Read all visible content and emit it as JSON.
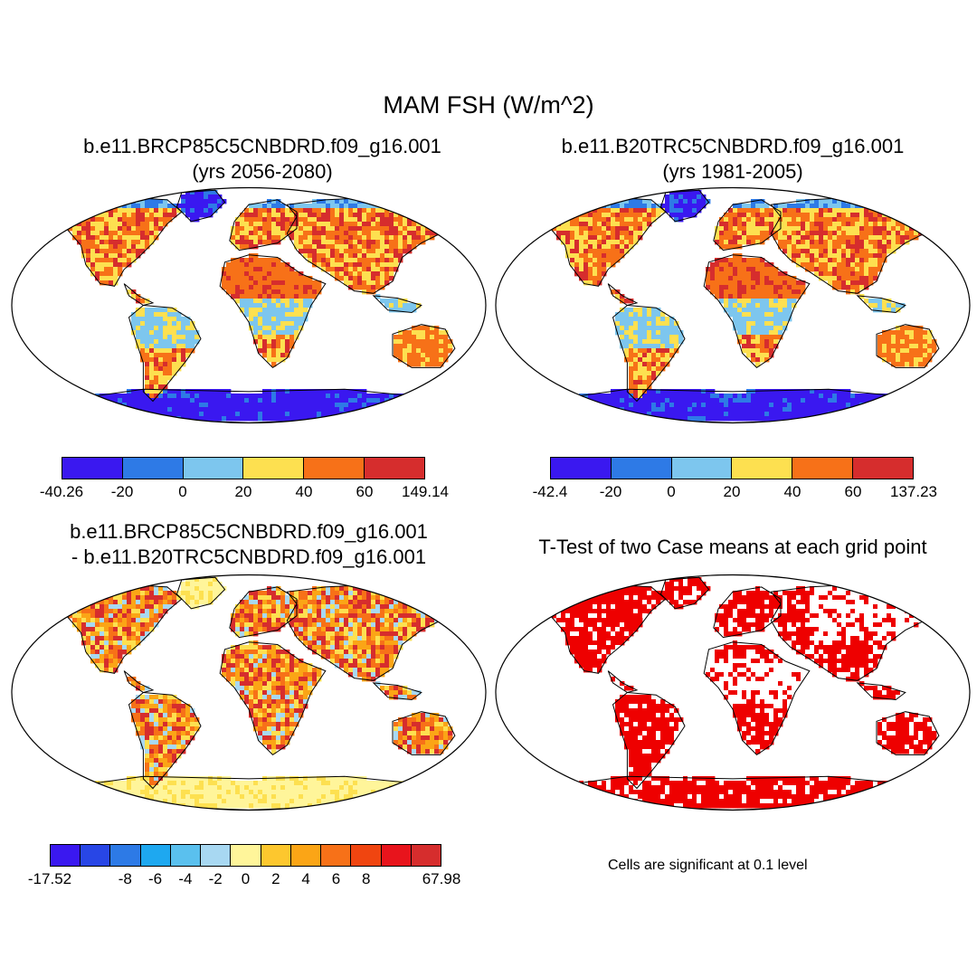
{
  "main_title": "MAM FSH (W/m^2)",
  "panels": {
    "top_left": {
      "title_line1": "b.e11.BRCP85C5CNBDRD.f09_g16.001",
      "title_line2": "(yrs 2056-2080)",
      "colorbar": {
        "colors": [
          "#3a18f0",
          "#2e7ae6",
          "#7dc6ee",
          "#fde050",
          "#f77118",
          "#d62d2d"
        ],
        "labels": [
          "-40.26",
          "-20",
          "0",
          "20",
          "40",
          "60",
          "149.14"
        ]
      }
    },
    "top_right": {
      "title_line1": "b.e11.B20TRC5CNBDRD.f09_g16.001",
      "title_line2": "(yrs 1981-2005)",
      "colorbar": {
        "colors": [
          "#3a18f0",
          "#2e7ae6",
          "#7dc6ee",
          "#fde050",
          "#f77118",
          "#d62d2d"
        ],
        "labels": [
          "-42.4",
          "-20",
          "0",
          "20",
          "40",
          "60",
          "137.23"
        ]
      }
    },
    "bottom_left": {
      "title_line1": "b.e11.BRCP85C5CNBDRD.f09_g16.001",
      "title_line2": "- b.e11.B20TRC5CNBDRD.f09_g16.001",
      "colorbar": {
        "colors": [
          "#3a18f0",
          "#2846e6",
          "#2d7ae6",
          "#1ea8f0",
          "#5ac0ee",
          "#a8d8f2",
          "#fff59a",
          "#fdc72e",
          "#fba516",
          "#f77118",
          "#f04510",
          "#e8141c",
          "#d62d2d"
        ],
        "labels": [
          "-17.52",
          "-8",
          "-6",
          "-4",
          "-2",
          "0",
          "2",
          "4",
          "6",
          "8",
          "67.98"
        ]
      }
    },
    "bottom_right": {
      "title_line1": "T-Test of two Case means at each grid point",
      "note": "Cells are significant at 0.1 level"
    }
  },
  "map_colors": {
    "neg_strong": "#3a18f0",
    "neg": "#2e7ae6",
    "neg_weak": "#7dc6ee",
    "pos_low": "#fde050",
    "pos_mid": "#f77118",
    "pos_high": "#d62d2d",
    "diff_pale": "#fff59a",
    "diff_light_blue": "#a8d8f2",
    "sig_red": "#ee0000"
  }
}
